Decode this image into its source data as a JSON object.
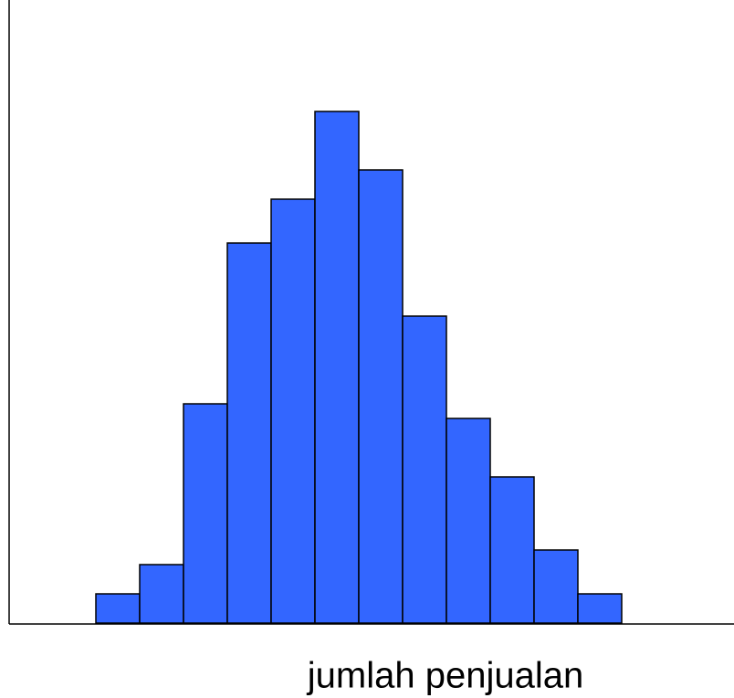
{
  "chart_data": {
    "type": "histogram",
    "x_label": "jumlah penjualan",
    "bins": [
      2,
      3,
      4,
      5,
      6,
      7,
      8,
      9,
      10,
      11,
      12,
      13,
      14
    ],
    "values": [
      2,
      4,
      15,
      26,
      29,
      35,
      31,
      21,
      14,
      10,
      5,
      2
    ],
    "color": "#3366ff",
    "xlim": [
      0,
      16.5
    ],
    "ylim": [
      0,
      42
    ]
  }
}
